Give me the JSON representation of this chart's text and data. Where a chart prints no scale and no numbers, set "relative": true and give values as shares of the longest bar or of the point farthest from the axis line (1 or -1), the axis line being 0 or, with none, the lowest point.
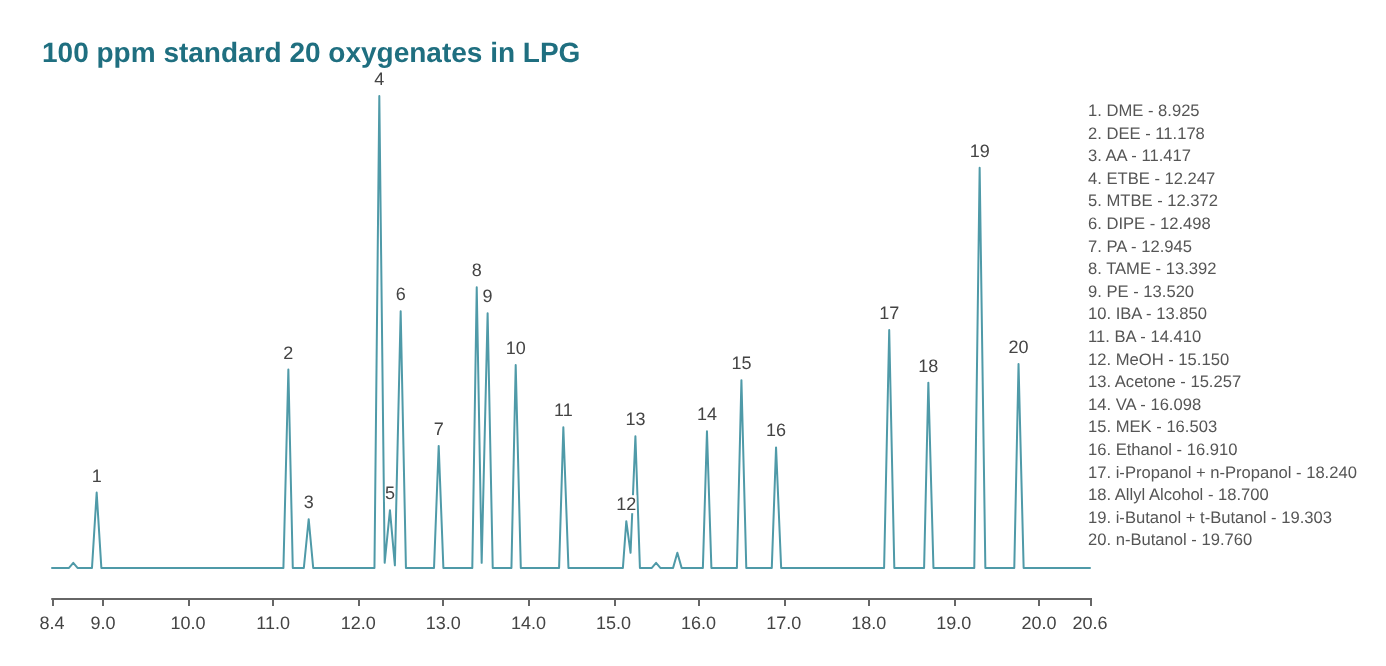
{
  "chart_data": {
    "type": "line",
    "title": "100 ppm standard 20 oxygenates in LPG",
    "relative": true,
    "tick_labels": "x",
    "marker": "none",
    "line_style": "solid",
    "xlim": [
      8.4,
      20.6
    ],
    "xticks": [
      8.4,
      {
        "value": 9,
        "label": "9.0"
      },
      {
        "value": 10,
        "label": "10.0"
      },
      {
        "value": 11,
        "label": "11.0"
      },
      {
        "value": 12,
        "label": "12.0"
      },
      {
        "value": 13,
        "label": "13.0"
      },
      {
        "value": 14,
        "label": "14.0"
      },
      {
        "value": 15,
        "label": "15.0"
      },
      {
        "value": 16,
        "label": "16.0"
      },
      {
        "value": 17,
        "label": "17.0"
      },
      {
        "value": 18,
        "label": "18.0"
      },
      {
        "value": 19,
        "label": "19.0"
      },
      {
        "value": 20,
        "label": "20.0"
      },
      20.6
    ],
    "series": [
      {
        "color": "#4f9aa8",
        "x": [
          8.4,
          8.6,
          8.65,
          8.7,
          8.87,
          8.925,
          8.98,
          11.12,
          11.178,
          11.23,
          11.36,
          11.417,
          11.47,
          12.19,
          12.247,
          12.31,
          12.372,
          12.43,
          12.498,
          12.56,
          12.89,
          12.945,
          13.0,
          13.34,
          13.392,
          13.45,
          13.52,
          13.58,
          13.8,
          13.85,
          13.91,
          14.36,
          14.41,
          14.47,
          15.11,
          15.15,
          15.2,
          15.257,
          15.31,
          15.45,
          15.5,
          15.55,
          15.7,
          15.75,
          15.8,
          16.05,
          16.098,
          16.15,
          16.45,
          16.503,
          16.56,
          16.86,
          16.91,
          16.97,
          18.18,
          18.24,
          18.3,
          18.65,
          18.7,
          18.76,
          19.24,
          19.303,
          19.37,
          19.71,
          19.76,
          19.82,
          20.6
        ],
        "values": [
          0.06,
          0.06,
          0.07,
          0.06,
          0.06,
          0.21,
          0.06,
          0.06,
          0.455,
          0.06,
          0.06,
          0.157,
          0.06,
          0.06,
          1,
          0.07,
          0.175,
          0.065,
          0.571,
          0.06,
          0.06,
          0.303,
          0.06,
          0.06,
          0.619,
          0.07,
          0.567,
          0.06,
          0.06,
          0.464,
          0.06,
          0.06,
          0.34,
          0.06,
          0.06,
          0.153,
          0.09,
          0.322,
          0.06,
          0.06,
          0.07,
          0.06,
          0.06,
          0.09,
          0.06,
          0.06,
          0.332,
          0.06,
          0.06,
          0.434,
          0.06,
          0.06,
          0.3,
          0.06,
          0.06,
          0.534,
          0.06,
          0.06,
          0.429,
          0.06,
          0.06,
          0.857,
          0.06,
          0.06,
          0.466,
          0.06,
          0.06
        ]
      }
    ],
    "annotations": [
      {
        "text": "1",
        "x": 8.925,
        "y": 0.21
      },
      {
        "text": "2",
        "x": 11.178,
        "y": 0.455
      },
      {
        "text": "3",
        "x": 11.417,
        "y": 0.157
      },
      {
        "text": "4",
        "x": 12.247,
        "y": 1
      },
      {
        "text": "5",
        "x": 12.372,
        "y": 0.175
      },
      {
        "text": "6",
        "x": 12.498,
        "y": 0.571
      },
      {
        "text": "7",
        "x": 12.945,
        "y": 0.303
      },
      {
        "text": "8",
        "x": 13.392,
        "y": 0.619
      },
      {
        "text": "9",
        "x": 13.52,
        "y": 0.567
      },
      {
        "text": "10",
        "x": 13.85,
        "y": 0.464
      },
      {
        "text": "11",
        "x": 14.41,
        "y": 0.34
      },
      {
        "text": "12",
        "x": 15.15,
        "y": 0.153
      },
      {
        "text": "13",
        "x": 15.257,
        "y": 0.322
      },
      {
        "text": "14",
        "x": 16.098,
        "y": 0.332
      },
      {
        "text": "15",
        "x": 16.503,
        "y": 0.434
      },
      {
        "text": "16",
        "x": 16.91,
        "y": 0.3
      },
      {
        "text": "17",
        "x": 18.24,
        "y": 0.534
      },
      {
        "text": "18",
        "x": 18.7,
        "y": 0.429
      },
      {
        "text": "19",
        "x": 19.303,
        "y": 0.857
      },
      {
        "text": "20",
        "x": 19.76,
        "y": 0.466
      },
      "1. DME - 8.925",
      "2. DEE - 11.178",
      "3. AA - 11.417",
      "4. ETBE - 12.247",
      "5. MTBE - 12.372",
      "6. DIPE - 12.498",
      "7. PA - 12.945",
      "8. TAME - 13.392",
      "9. PE - 13.520",
      "10. IBA - 13.850",
      "11. BA - 14.410",
      "12. MeOH - 15.150",
      "13. Acetone - 15.257",
      "14. VA - 16.098",
      "15. MEK - 16.503",
      "16. Ethanol - 16.910",
      "17. i-Propanol + n-Propanol - 18.240",
      "18. Allyl Alcohol - 18.700",
      "19. i-Butanol + t-Butanol - 19.303",
      "20. n-Butanol - 19.760"
    ]
  }
}
